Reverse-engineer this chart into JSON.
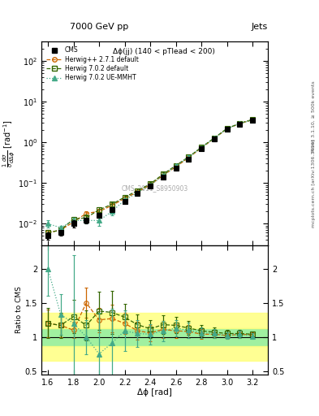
{
  "title_top": "7000 GeV pp",
  "title_right": "Jets",
  "annotation": "Δϕ(jj) (140 < pTlead < 200)",
  "watermark": "CMS_2011_S8950903",
  "xlabel": "Δϕ [rad]",
  "ylabel_main": "$\\frac{1}{\\sigma}\\frac{d\\sigma}{d\\Delta\\phi}$ [rad$^{-1}$]",
  "ylabel_ratio": "Ratio to CMS",
  "rivet_label": "Rivet 3.1.10, ≥ 500k events",
  "arxiv_label": "[arXiv:1306.3436]",
  "mcplots_label": "mcplots.cern.ch",
  "xlim": [
    1.55,
    3.32
  ],
  "ylim_main": [
    0.003,
    300.0
  ],
  "ylim_ratio": [
    0.45,
    2.35
  ],
  "cms_x": [
    1.6,
    1.7,
    1.8,
    1.9,
    2.0,
    2.1,
    2.2,
    2.3,
    2.4,
    2.5,
    2.6,
    2.7,
    2.8,
    2.9,
    3.0,
    3.1,
    3.2
  ],
  "cms_y": [
    0.005,
    0.006,
    0.01,
    0.012,
    0.016,
    0.022,
    0.035,
    0.055,
    0.085,
    0.14,
    0.23,
    0.39,
    0.7,
    1.2,
    2.1,
    2.8,
    3.5
  ],
  "cms_yerr": [
    0.001,
    0.001,
    0.002,
    0.002,
    0.002,
    0.003,
    0.005,
    0.007,
    0.01,
    0.015,
    0.025,
    0.04,
    0.07,
    0.12,
    0.2,
    0.28,
    0.35
  ],
  "herwig271_x": [
    1.6,
    1.7,
    1.8,
    1.9,
    2.0,
    2.1,
    2.2,
    2.3,
    2.4,
    2.5,
    2.6,
    2.7,
    2.8,
    2.9,
    3.0,
    3.1,
    3.2
  ],
  "herwig271_y": [
    0.006,
    0.007,
    0.011,
    0.018,
    0.02,
    0.028,
    0.042,
    0.06,
    0.09,
    0.155,
    0.25,
    0.42,
    0.73,
    1.25,
    2.15,
    2.9,
    3.6
  ],
  "herwig271_yerr": [
    0.001,
    0.001,
    0.002,
    0.002,
    0.003,
    0.004,
    0.005,
    0.007,
    0.01,
    0.015,
    0.025,
    0.045,
    0.075,
    0.13,
    0.22,
    0.3,
    0.37
  ],
  "herwig702d_x": [
    1.6,
    1.7,
    1.8,
    1.9,
    2.0,
    2.1,
    2.2,
    2.3,
    2.4,
    2.5,
    2.6,
    2.7,
    2.8,
    2.9,
    3.0,
    3.1,
    3.2
  ],
  "herwig702d_y": [
    0.006,
    0.007,
    0.013,
    0.014,
    0.022,
    0.03,
    0.045,
    0.065,
    0.095,
    0.165,
    0.27,
    0.44,
    0.76,
    1.28,
    2.2,
    2.95,
    3.65
  ],
  "herwig702d_yerr": [
    0.001,
    0.001,
    0.002,
    0.003,
    0.003,
    0.004,
    0.006,
    0.008,
    0.011,
    0.017,
    0.027,
    0.048,
    0.08,
    0.135,
    0.225,
    0.305,
    0.38
  ],
  "herwig702ue_x": [
    1.6,
    1.7,
    1.8,
    1.9,
    2.0,
    2.1,
    2.2,
    2.3,
    2.4,
    2.5,
    2.6,
    2.7,
    2.8,
    2.9,
    3.0,
    3.1,
    3.2
  ],
  "herwig702ue_y": [
    0.01,
    0.008,
    0.012,
    0.012,
    0.012,
    0.02,
    0.038,
    0.058,
    0.088,
    0.152,
    0.26,
    0.43,
    0.74,
    1.26,
    2.15,
    2.92,
    3.55
  ],
  "herwig702ue_yerr": [
    0.002,
    0.001,
    0.002,
    0.002,
    0.003,
    0.004,
    0.005,
    0.007,
    0.01,
    0.016,
    0.026,
    0.046,
    0.077,
    0.13,
    0.218,
    0.295,
    0.36
  ],
  "cms_color": "#000000",
  "herwig271_color": "#cc6600",
  "herwig702d_color": "#336600",
  "herwig702ue_color": "#44aa88",
  "green_band_inner": [
    0.87,
    1.13
  ],
  "green_band_outer": [
    0.65,
    1.35
  ],
  "ratio_herwig271": [
    1.2,
    1.17,
    1.1,
    1.5,
    1.25,
    1.27,
    1.2,
    1.09,
    1.06,
    1.11,
    1.09,
    1.08,
    1.04,
    1.04,
    1.02,
    1.04,
    1.03
  ],
  "ratio_herwig702d": [
    1.2,
    1.17,
    1.3,
    1.17,
    1.38,
    1.36,
    1.29,
    1.18,
    1.12,
    1.18,
    1.17,
    1.13,
    1.09,
    1.07,
    1.05,
    1.05,
    1.04
  ],
  "ratio_herwig702ue": [
    2.0,
    1.33,
    1.2,
    1.0,
    0.75,
    0.91,
    1.09,
    1.05,
    1.04,
    1.09,
    1.13,
    1.1,
    1.06,
    1.05,
    1.02,
    1.04,
    1.01
  ],
  "ratio_herwig271_yerr": [
    0.2,
    0.17,
    0.12,
    0.22,
    0.18,
    0.2,
    0.16,
    0.13,
    0.12,
    0.12,
    0.1,
    0.09,
    0.07,
    0.06,
    0.05,
    0.05,
    0.04
  ],
  "ratio_herwig702d_yerr": [
    0.22,
    0.19,
    0.25,
    0.22,
    0.28,
    0.32,
    0.2,
    0.15,
    0.13,
    0.14,
    0.12,
    0.1,
    0.08,
    0.07,
    0.05,
    0.05,
    0.04
  ],
  "ratio_herwig702ue_yerr": [
    0.4,
    0.3,
    1.0,
    0.25,
    0.6,
    0.5,
    0.3,
    0.2,
    0.15,
    0.15,
    0.12,
    0.11,
    0.08,
    0.07,
    0.05,
    0.05,
    0.04
  ]
}
